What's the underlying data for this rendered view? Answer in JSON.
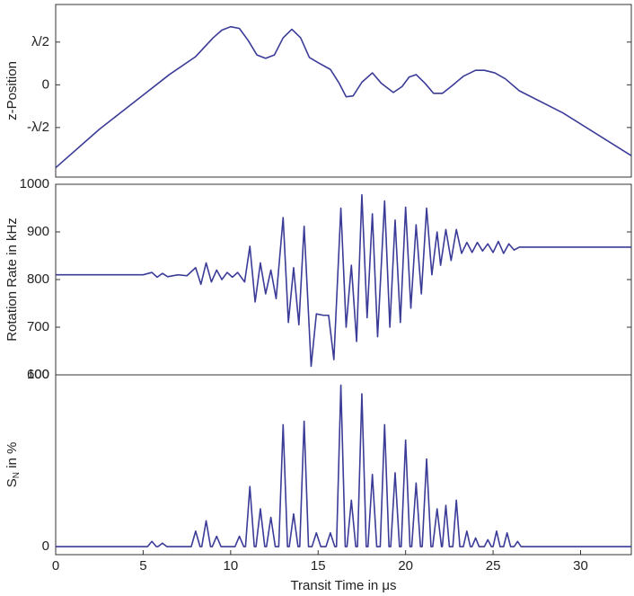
{
  "chart_data": [
    {
      "type": "line",
      "ylabel": "z-Position",
      "xlim": [
        0,
        32.9
      ],
      "ylim": [
        -1.08,
        0.94
      ],
      "color": "#3b3b98",
      "yticks": [
        {
          "value": 0.5,
          "label": "λ/2"
        },
        0,
        {
          "value": -0.5,
          "label": "-λ/2"
        }
      ],
      "x": [
        0,
        2.5,
        5,
        6.5,
        8,
        9,
        9.5,
        10,
        10.5,
        11,
        11.5,
        12,
        12.5,
        13,
        13.5,
        14,
        14.5,
        15,
        15.7,
        16.2,
        16.6,
        17,
        17.5,
        18.1,
        18.6,
        19.3,
        19.8,
        20.2,
        20.6,
        21.1,
        21.6,
        22.1,
        22.6,
        23.3,
        24,
        24.5,
        25.1,
        25.7,
        26.5,
        29,
        32.9
      ],
      "values": [
        -0.97,
        -0.52,
        -0.12,
        0.12,
        0.33,
        0.55,
        0.64,
        0.68,
        0.66,
        0.52,
        0.35,
        0.31,
        0.35,
        0.55,
        0.65,
        0.55,
        0.32,
        0.26,
        0.18,
        0.02,
        -0.14,
        -0.13,
        0.03,
        0.14,
        0.02,
        -0.09,
        -0.02,
        0.09,
        0.12,
        0.02,
        -0.1,
        -0.1,
        -0.02,
        0.1,
        0.17,
        0.17,
        0.14,
        0.07,
        -0.07,
        -0.33,
        -0.83
      ]
    },
    {
      "type": "line",
      "ylabel": "Rotation Rate in kHz",
      "xlim": [
        0,
        32.9
      ],
      "ylim": [
        600,
        1000
      ],
      "color": "#3b3b98",
      "yticks": [
        600,
        700,
        800,
        900,
        1000
      ],
      "x": [
        0,
        5,
        5.5,
        5.8,
        6.1,
        6.4,
        7,
        7.5,
        8.0,
        8.3,
        8.6,
        8.9,
        9.2,
        9.5,
        9.8,
        10.1,
        10.4,
        10.8,
        11.1,
        11.4,
        11.7,
        12.0,
        12.3,
        12.6,
        13.0,
        13.3,
        13.6,
        13.9,
        14.2,
        14.6,
        14.9,
        15.3,
        15.6,
        15.9,
        16.3,
        16.6,
        16.9,
        17.2,
        17.5,
        17.8,
        18.1,
        18.4,
        18.8,
        19.1,
        19.4,
        19.7,
        20.0,
        20.3,
        20.6,
        20.9,
        21.2,
        21.5,
        21.8,
        22.0,
        22.3,
        22.6,
        22.9,
        23.2,
        23.5,
        23.8,
        24.1,
        24.4,
        24.7,
        25.0,
        25.3,
        25.6,
        25.9,
        26.2,
        26.5,
        32.9
      ],
      "values": [
        810,
        810,
        815,
        805,
        813,
        806,
        810,
        808,
        825,
        790,
        835,
        795,
        820,
        800,
        815,
        805,
        815,
        795,
        870,
        753,
        835,
        770,
        820,
        760,
        930,
        710,
        825,
        705,
        912,
        618,
        728,
        725,
        725,
        632,
        950,
        700,
        830,
        670,
        978,
        720,
        938,
        680,
        965,
        700,
        925,
        710,
        952,
        740,
        915,
        770,
        950,
        810,
        900,
        830,
        905,
        840,
        905,
        855,
        878,
        857,
        878,
        860,
        875,
        857,
        880,
        855,
        875,
        862,
        868,
        868
      ]
    },
    {
      "type": "line",
      "ylabel": [
        "S",
        "N",
        " in %"
      ],
      "xlabel": "Transit Time in μs",
      "xlim": [
        0,
        32.9
      ],
      "ylim": [
        -4.7,
        100
      ],
      "color": "#3b3b98",
      "yticks": [
        0,
        100
      ],
      "xticks": [
        0,
        5,
        10,
        15,
        20,
        25,
        30
      ],
      "x": [
        0,
        5.25,
        5.5,
        5.75,
        5.85,
        6.1,
        6.35,
        7.75,
        8.0,
        8.25,
        8.35,
        8.6,
        8.85,
        8.95,
        9.2,
        9.45,
        10.25,
        10.5,
        10.75,
        10.85,
        11.1,
        11.35,
        11.45,
        11.7,
        11.95,
        12.05,
        12.3,
        12.55,
        12.75,
        13.0,
        13.25,
        13.35,
        13.6,
        13.85,
        13.95,
        14.2,
        14.45,
        14.65,
        14.9,
        15.15,
        15.45,
        15.7,
        15.95,
        16.05,
        16.3,
        16.55,
        16.65,
        16.9,
        17.15,
        17.25,
        17.5,
        17.75,
        17.85,
        18.1,
        18.35,
        18.55,
        18.8,
        19.05,
        19.15,
        19.4,
        19.65,
        19.75,
        20.0,
        20.25,
        20.35,
        20.6,
        20.85,
        20.95,
        21.2,
        21.45,
        21.55,
        21.8,
        22.05,
        22.1,
        22.3,
        22.5,
        22.7,
        22.9,
        23.1,
        23.3,
        23.5,
        23.7,
        23.8,
        24.0,
        24.2,
        24.5,
        24.7,
        24.9,
        25.0,
        25.2,
        25.4,
        25.6,
        25.8,
        26.0,
        26.2,
        26.4,
        26.6,
        32.9
      ],
      "values": [
        0,
        0,
        3,
        0,
        0,
        2,
        0,
        0,
        9,
        0,
        0,
        15,
        0,
        0,
        6,
        0,
        0,
        6,
        0,
        0,
        35,
        0,
        0,
        22,
        0,
        0,
        17,
        0,
        0,
        71,
        0,
        0,
        19,
        0,
        0,
        73,
        0,
        0,
        8,
        0,
        0,
        8,
        0,
        0,
        94,
        0,
        0,
        27,
        0,
        0,
        89,
        0,
        0,
        42,
        0,
        0,
        71,
        0,
        0,
        43,
        0,
        0,
        62,
        0,
        0,
        37,
        0,
        0,
        51,
        0,
        0,
        22,
        0,
        0,
        24,
        0,
        0,
        27,
        0,
        0,
        9,
        0,
        0,
        5,
        0,
        0,
        4,
        0,
        0,
        9,
        0,
        0,
        8,
        0,
        0,
        3,
        0,
        0
      ]
    }
  ]
}
